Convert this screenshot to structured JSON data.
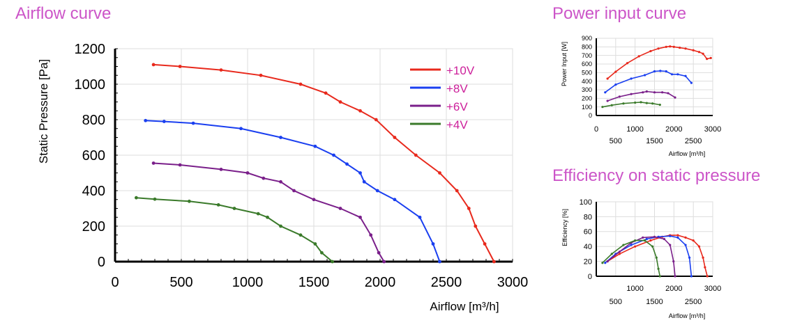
{
  "titles": {
    "airflow": "Airflow curve",
    "power": "Power input curve",
    "efficiency": "Efficiency on static pressure"
  },
  "chart_data": [
    {
      "type": "line",
      "title": "Airflow curve",
      "xlabel": "Airflow [m³/h]",
      "ylabel": "Static Pressure [Pa]",
      "xlim": [
        0,
        3000
      ],
      "ylim": [
        0,
        1200
      ],
      "xticks": [
        "0",
        "500",
        "1000",
        "1500",
        "2000",
        "2500",
        "3000"
      ],
      "yticks": [
        "0",
        "200",
        "400",
        "600",
        "800",
        "1000",
        "1200"
      ],
      "grid": true,
      "legend": "top-right",
      "series": [
        {
          "name": "+10V",
          "color": "#e8291c",
          "x": [
            290,
            490,
            800,
            1100,
            1400,
            1590,
            1700,
            1850,
            1970,
            2110,
            2270,
            2450,
            2580,
            2670,
            2720,
            2790,
            2860
          ],
          "y": [
            1110,
            1100,
            1080,
            1050,
            1000,
            950,
            900,
            850,
            800,
            700,
            600,
            500,
            400,
            300,
            200,
            100,
            0
          ]
        },
        {
          "name": "+8V",
          "color": "#1a3ff0",
          "x": [
            230,
            370,
            590,
            950,
            1250,
            1510,
            1650,
            1750,
            1850,
            1880,
            1980,
            2110,
            2300,
            2400,
            2450
          ],
          "y": [
            795,
            790,
            780,
            750,
            700,
            650,
            600,
            550,
            500,
            450,
            400,
            350,
            250,
            100,
            0
          ]
        },
        {
          "name": "+6V",
          "color": "#7a1f8a",
          "x": [
            290,
            490,
            800,
            1000,
            1120,
            1250,
            1350,
            1500,
            1700,
            1850,
            1930,
            1990,
            2030
          ],
          "y": [
            555,
            545,
            520,
            500,
            470,
            450,
            400,
            350,
            300,
            250,
            150,
            50,
            0
          ]
        },
        {
          "name": "+4V",
          "color": "#3a7a2a",
          "x": [
            160,
            300,
            560,
            780,
            900,
            1080,
            1150,
            1250,
            1400,
            1510,
            1560,
            1640
          ],
          "y": [
            360,
            352,
            340,
            320,
            300,
            270,
            250,
            200,
            150,
            100,
            50,
            0
          ]
        }
      ]
    },
    {
      "type": "line",
      "title": "Power input curve",
      "xlabel": "Airflow [m³/h]",
      "ylabel": "Power Input [W]",
      "xlim": [
        0,
        3000
      ],
      "ylim": [
        0,
        900
      ],
      "xticks_upper": [
        "0",
        "1000",
        "2000",
        "3000"
      ],
      "xticks_lower": [
        "500",
        "1500",
        "2500"
      ],
      "yticks": [
        "0",
        "100",
        "200",
        "300",
        "400",
        "500",
        "600",
        "700",
        "800",
        "900"
      ],
      "grid": true,
      "series": [
        {
          "name": "+10V",
          "color": "#e8291c",
          "x": [
            290,
            500,
            800,
            1100,
            1400,
            1600,
            1800,
            1900,
            2000,
            2150,
            2300,
            2500,
            2650,
            2750,
            2850,
            2950
          ],
          "y": [
            430,
            510,
            610,
            690,
            750,
            780,
            800,
            805,
            800,
            790,
            780,
            760,
            740,
            720,
            660,
            670
          ]
        },
        {
          "name": "+8V",
          "color": "#1a3ff0",
          "x": [
            230,
            500,
            900,
            1250,
            1500,
            1650,
            1800,
            1950,
            2100,
            2300,
            2450
          ],
          "y": [
            270,
            360,
            430,
            470,
            515,
            520,
            515,
            480,
            480,
            460,
            380
          ]
        },
        {
          "name": "+6V",
          "color": "#7a1f8a",
          "x": [
            290,
            600,
            900,
            1200,
            1300,
            1500,
            1700,
            1850,
            2030
          ],
          "y": [
            170,
            220,
            250,
            270,
            280,
            270,
            270,
            260,
            210
          ]
        },
        {
          "name": "+4V",
          "color": "#3a7a2a",
          "x": [
            160,
            400,
            700,
            1000,
            1150,
            1300,
            1450,
            1640
          ],
          "y": [
            100,
            120,
            140,
            150,
            155,
            145,
            140,
            125
          ]
        }
      ]
    },
    {
      "type": "line",
      "title": "Efficiency on static pressure",
      "xlabel": "Airflow [m³/h]",
      "ylabel": "Efficiency [%]",
      "xlim": [
        0,
        3000
      ],
      "ylim": [
        0,
        100
      ],
      "xticks_upper": [
        "1000",
        "2000",
        "3000"
      ],
      "xticks_lower": [
        "500",
        "1500",
        "2500"
      ],
      "yticks": [
        "0",
        "20",
        "40",
        "60",
        "80",
        "100"
      ],
      "grid": true,
      "series": [
        {
          "name": "+10V",
          "color": "#e8291c",
          "x": [
            290,
            600,
            1000,
            1400,
            1700,
            1900,
            2100,
            2300,
            2500,
            2650,
            2750,
            2800,
            2860
          ],
          "y": [
            20,
            30,
            40,
            48,
            53,
            55,
            55,
            52,
            48,
            40,
            25,
            12,
            0
          ]
        },
        {
          "name": "+8V",
          "color": "#1a3ff0",
          "x": [
            230,
            500,
            900,
            1300,
            1600,
            1900,
            2100,
            2300,
            2400,
            2450
          ],
          "y": [
            18,
            30,
            42,
            50,
            53,
            54,
            52,
            42,
            25,
            0
          ]
        },
        {
          "name": "+6V",
          "color": "#7a1f8a",
          "x": [
            290,
            600,
            900,
            1200,
            1500,
            1750,
            1900,
            1990,
            2030
          ],
          "y": [
            20,
            33,
            45,
            52,
            53,
            50,
            42,
            20,
            0
          ]
        },
        {
          "name": "+4V",
          "color": "#3a7a2a",
          "x": [
            160,
            400,
            700,
            1000,
            1250,
            1450,
            1550,
            1600,
            1640
          ],
          "y": [
            18,
            30,
            42,
            48,
            48,
            40,
            25,
            10,
            0
          ]
        }
      ]
    }
  ]
}
